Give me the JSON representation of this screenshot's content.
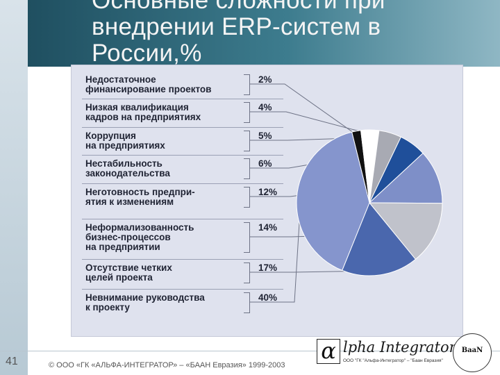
{
  "title_lines": [
    "Основные сложности при",
    "внедрении ERP-систем в",
    "России,%"
  ],
  "chart_data": {
    "type": "pie",
    "title": "Основные сложности при внедрении ERP-систем в России,%",
    "categories": [
      "Недостаточное финансирование проектов",
      "Низкая квалификация кадров на предприятиях",
      "Коррупция на предприятиях",
      "Нестабильность законодательства",
      "Неготовность предприятия к изменениям",
      "Неформализованность бизнес-процессов на предприятии",
      "Отсутствие четких целей проекта",
      "Невнимание руководства к проекту"
    ],
    "label_lines": [
      "Недостаточное\nфинансирование проектов",
      "Низкая квалификация\nкадров на предприятиях",
      "Коррупция\nна предприятиях",
      "Нестабильность\nзаконодательства",
      "Неготовность предпри-\nятия к изменениям",
      "Неформализованность\nбизнес-процессов\nна предприятии",
      "Отсутствие четких\nцелей проекта",
      "Невнимание руководства\nк проекту"
    ],
    "values": [
      2,
      4,
      5,
      6,
      12,
      14,
      17,
      40
    ],
    "value_labels": [
      "2%",
      "4%",
      "5%",
      "6%",
      "12%",
      "14%",
      "17%",
      "40%"
    ],
    "slice_colors": [
      "#111111",
      "#ffffff",
      "#a8aab3",
      "#1f4f9a",
      "#7e8fc8",
      "#c0c2cb",
      "#4a67ad",
      "#8595cd"
    ],
    "legend": "left"
  },
  "footer": {
    "page_number": "41",
    "copyright": "© ООО «ГК «АЛЬФА-ИНТЕГРАТОР» – «БААН Евразия» 1999-2003",
    "logo_letter": "α",
    "logo_text": "lpha Integrator",
    "logo_subtitle": "ООО \"ГК \"Альфа-Интегратор\" – \"Баан Евразия\"",
    "seal_text": "BaaN"
  }
}
